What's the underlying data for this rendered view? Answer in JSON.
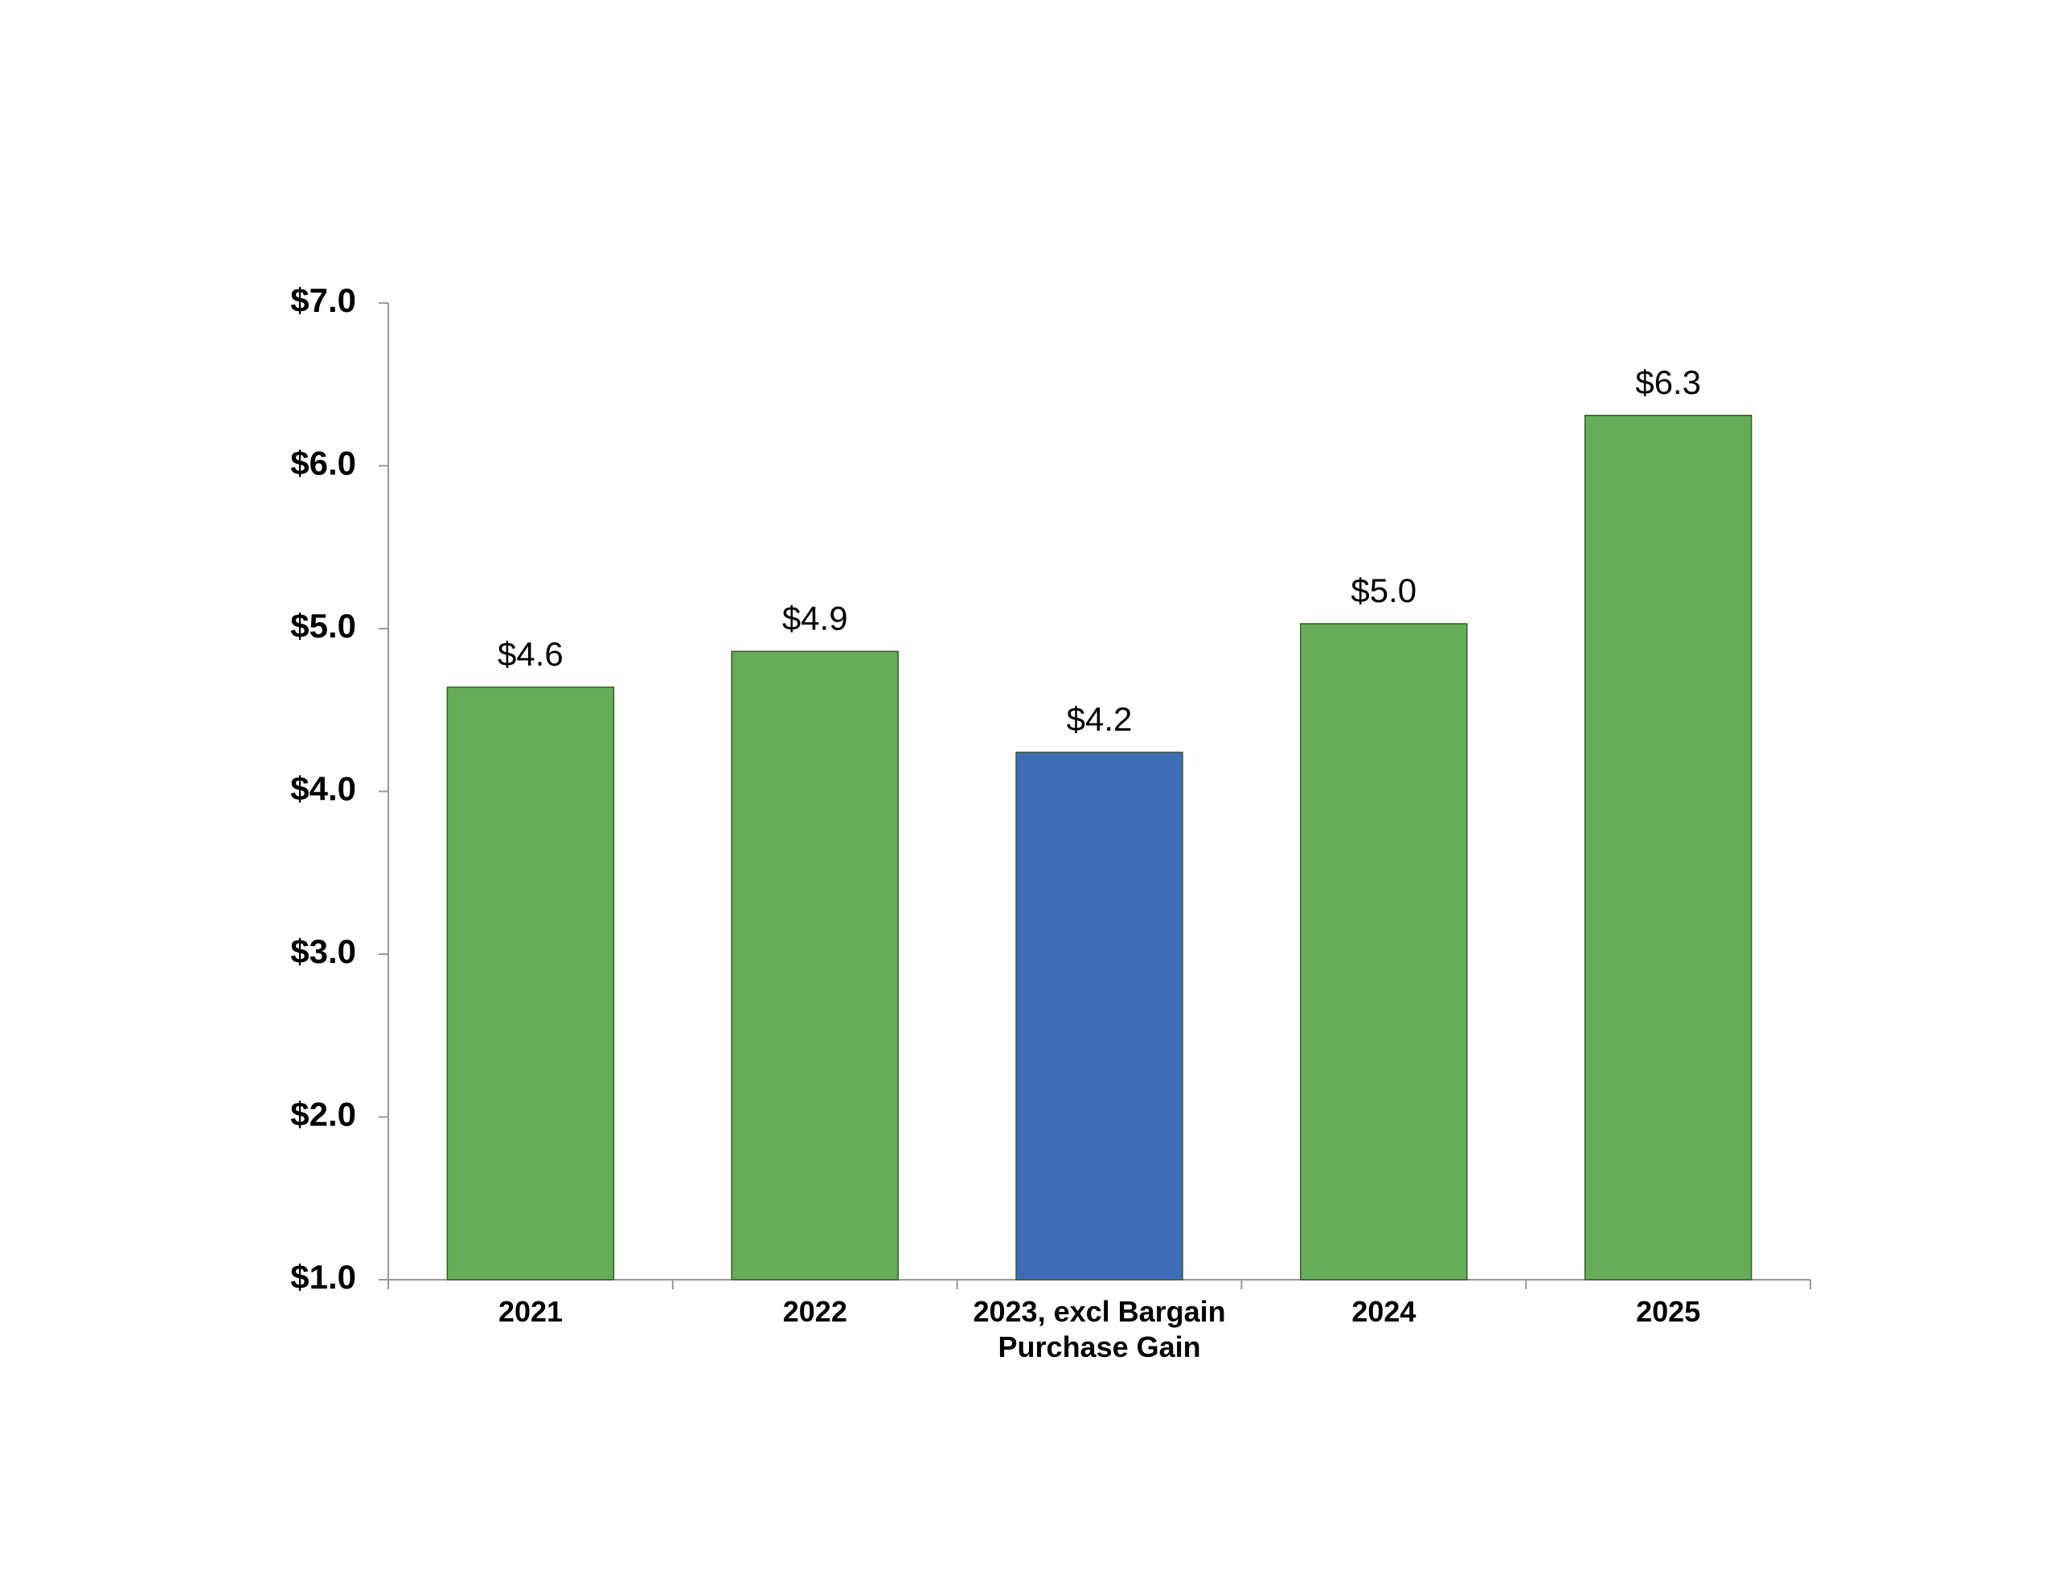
{
  "chart_data": {
    "type": "bar",
    "categories": [
      "2021",
      "2022",
      "2023, excl Bargain Purchase Gain",
      "2024",
      "2025"
    ],
    "values": [
      4.64,
      4.86,
      4.24,
      5.03,
      6.31
    ],
    "value_labels": [
      "$4.6",
      "$4.9",
      "$4.2",
      "$5.0",
      "$6.3"
    ],
    "colors": [
      "#66ad57",
      "#66ad57",
      "#3f6cb9",
      "#66ad57",
      "#66ad57"
    ],
    "ylim": [
      1,
      7
    ],
    "yticks": [
      {
        "value": 1,
        "label": "$1.0"
      },
      {
        "value": 2,
        "label": "$2.0"
      },
      {
        "value": 3,
        "label": "$3.0"
      },
      {
        "value": 4,
        "label": "$4.0"
      },
      {
        "value": 5,
        "label": "$5.0"
      },
      {
        "value": 6,
        "label": "$6.0"
      },
      {
        "value": 7,
        "label": "$7.0"
      }
    ],
    "grid": false
  }
}
